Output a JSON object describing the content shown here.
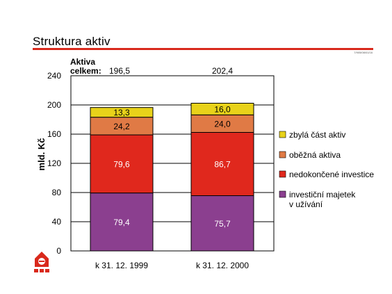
{
  "page": {
    "title": "Struktura aktiv",
    "code": "7/905/08/01/16"
  },
  "colors": {
    "accent": "#d9291c",
    "series": [
      "#8b3f8f",
      "#e0281d",
      "#e07a45",
      "#e8d21a"
    ]
  },
  "chart_data": {
    "type": "bar",
    "stacked": true,
    "title": "",
    "ylabel": "mld. Kč",
    "ylim": [
      0,
      240
    ],
    "yticks": [
      0,
      40,
      80,
      120,
      160,
      200,
      240
    ],
    "categories": [
      "k 31. 12. 1999",
      "k 31. 12. 2000"
    ],
    "totals_label": "Aktiva celkem:",
    "totals": [
      "196,5",
      "202,4"
    ],
    "series": [
      {
        "name": "investiční majetek v užívání",
        "values": [
          79.4,
          75.7
        ],
        "labels": [
          "79,4",
          "75,7"
        ]
      },
      {
        "name": "nedokončené investice",
        "values": [
          79.6,
          86.7
        ],
        "labels": [
          "79,6",
          "86,7"
        ]
      },
      {
        "name": "oběžná aktiva",
        "values": [
          24.2,
          24.0
        ],
        "labels": [
          "24,2",
          "24,0"
        ]
      },
      {
        "name": "zbylá část aktiv",
        "values": [
          13.3,
          16.0
        ],
        "labels": [
          "13,3",
          "16,0"
        ]
      }
    ],
    "legend_position": "right",
    "grid": true
  }
}
